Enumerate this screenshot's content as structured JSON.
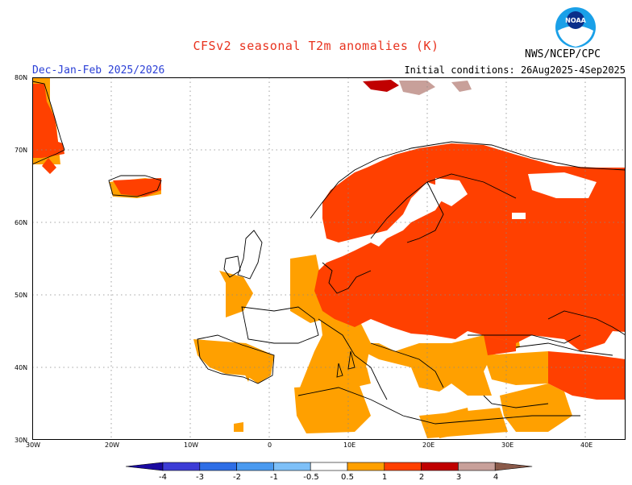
{
  "header": {
    "title": "CFSv2 seasonal T2m anomalies (K)",
    "season": "Dec-Jan-Feb 2025/2026",
    "initial_conditions": "Initial conditions: 26Aug2025-4Sep2025",
    "agency": "NWS/NCEP/CPC",
    "logo_text": "NOAA"
  },
  "map": {
    "region": "Europe",
    "lon_range": [
      -30,
      45
    ],
    "lat_range": [
      30,
      80
    ],
    "lat_labels": [
      "80N",
      "70N",
      "60N",
      "50N",
      "40N",
      "30N"
    ],
    "lon_labels": [
      "30W",
      "20W",
      "10W",
      "0",
      "10E",
      "20E",
      "30E",
      "40E"
    ],
    "grid": "dotted"
  },
  "colorbar": {
    "labels": [
      "-4",
      "-3",
      "-2",
      "-1",
      "-0.5",
      "0.5",
      "1",
      "2",
      "3",
      "4"
    ],
    "colors": [
      "#1a0aa0",
      "#3c3cd6",
      "#2e6ee6",
      "#4a9af0",
      "#7ec0f8",
      "#ffffff",
      "#ffa000",
      "#ff4000",
      "#c00000",
      "#c8a09a",
      "#8a5a4a"
    ]
  },
  "colors": {
    "anomaly_0_5_1": "#ffa000",
    "anomaly_1_2": "#ff4000",
    "anomaly_2_3": "#c00000",
    "anomaly_3_4": "#c8a09a",
    "coastline": "#000000",
    "title": "#e8321e",
    "season_label": "#2a3fd6"
  }
}
